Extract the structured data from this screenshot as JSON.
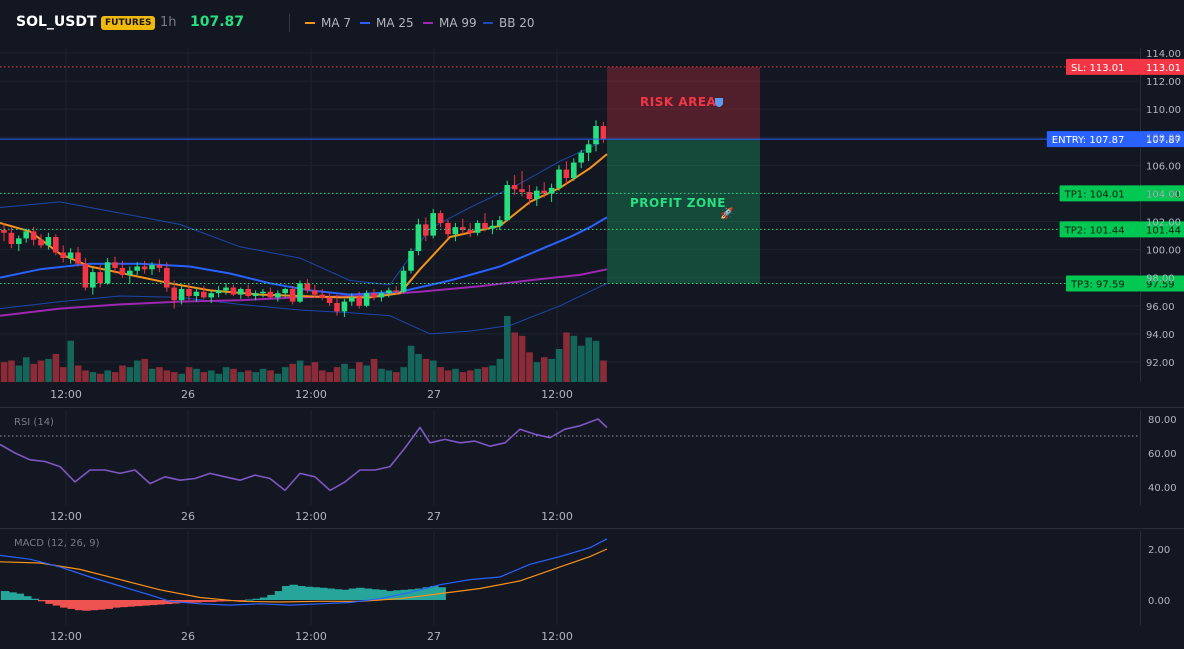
{
  "header": {
    "symbol": "SOL_USDT",
    "badge": "FUTURES",
    "timeframe": "1h",
    "price": "107.87",
    "indicators": [
      {
        "label": "MA 7",
        "color": "#f7931a"
      },
      {
        "label": "MA 25",
        "color": "#2962ff"
      },
      {
        "label": "MA 99",
        "color": "#9c27b0"
      },
      {
        "label": "BB 20",
        "color": "#1e4bb8"
      }
    ]
  },
  "colors": {
    "up": "#26e07f",
    "down": "#f23645",
    "vol_up": "#136659",
    "vol_down": "#8c2b38",
    "ma7": "#f7931a",
    "ma25": "#2962ff",
    "ma99": "#9c27b0",
    "bb": "#1e4bb8",
    "rsi": "#7e57c2",
    "macd": "#2962ff",
    "signal": "#f7931a",
    "hist_up": "#26a69a",
    "hist_down": "#ef5350",
    "sl": "#f23645",
    "entry": "#2962ff",
    "tp": "#26e07f"
  },
  "x_labels": [
    "12:00",
    "26",
    "12:00",
    "27",
    "12:00"
  ],
  "chart_data": [
    {
      "type": "candlestick",
      "name": "price",
      "y_ticks": [
        "114.00",
        "112.00",
        "110.00",
        "108.00",
        "106.00",
        "104.00",
        "102.00",
        "100.00",
        "98.00",
        "96.00",
        "94.00",
        "92.00"
      ],
      "ylim": [
        90.5,
        114.5
      ],
      "candles": [
        [
          101.4,
          101.9,
          100.6,
          101.2
        ],
        [
          101.2,
          101.6,
          100.1,
          100.4
        ],
        [
          100.4,
          101.0,
          99.9,
          100.8
        ],
        [
          100.8,
          101.5,
          100.5,
          101.3
        ],
        [
          101.3,
          101.6,
          100.3,
          100.7
        ],
        [
          100.7,
          101.1,
          100.1,
          100.3
        ],
        [
          100.3,
          101.2,
          100.0,
          100.9
        ],
        [
          100.9,
          101.1,
          99.6,
          99.8
        ],
        [
          99.8,
          100.3,
          99.1,
          99.4
        ],
        [
          99.4,
          100.1,
          99.0,
          99.8
        ],
        [
          99.8,
          100.2,
          98.8,
          99.0
        ],
        [
          99.0,
          99.4,
          97.1,
          97.3
        ],
        [
          97.3,
          98.7,
          96.8,
          98.4
        ],
        [
          98.4,
          98.9,
          97.3,
          97.6
        ],
        [
          97.6,
          99.4,
          97.5,
          99.1
        ],
        [
          99.1,
          99.5,
          98.3,
          98.7
        ],
        [
          98.7,
          99.2,
          98.0,
          98.2
        ],
        [
          98.2,
          98.8,
          97.6,
          98.5
        ],
        [
          98.5,
          99.1,
          98.2,
          98.8
        ],
        [
          98.8,
          99.2,
          98.3,
          98.6
        ],
        [
          98.6,
          99.1,
          98.2,
          98.9
        ],
        [
          98.9,
          99.3,
          98.4,
          98.7
        ],
        [
          98.7,
          99.1,
          97.0,
          97.3
        ],
        [
          97.3,
          97.8,
          95.8,
          96.4
        ],
        [
          96.4,
          97.4,
          96.1,
          97.2
        ],
        [
          97.2,
          97.6,
          96.4,
          96.7
        ],
        [
          96.7,
          97.3,
          96.3,
          97.0
        ],
        [
          97.0,
          97.4,
          96.5,
          96.6
        ],
        [
          96.6,
          97.1,
          96.2,
          96.9
        ],
        [
          96.9,
          97.4,
          96.6,
          97.1
        ],
        [
          97.1,
          97.6,
          96.8,
          97.3
        ],
        [
          97.3,
          97.5,
          96.7,
          96.8
        ],
        [
          96.8,
          97.3,
          96.5,
          97.2
        ],
        [
          97.2,
          97.5,
          96.6,
          96.7
        ],
        [
          96.7,
          97.1,
          96.4,
          96.9
        ],
        [
          96.9,
          97.2,
          96.6,
          97.0
        ],
        [
          97.0,
          97.3,
          96.5,
          96.6
        ],
        [
          96.6,
          97.1,
          96.3,
          96.9
        ],
        [
          96.9,
          97.3,
          96.6,
          97.2
        ],
        [
          97.2,
          97.4,
          96.1,
          96.3
        ],
        [
          96.3,
          97.8,
          96.2,
          97.6
        ],
        [
          97.6,
          97.9,
          96.9,
          97.1
        ],
        [
          97.1,
          97.5,
          96.6,
          96.8
        ],
        [
          96.8,
          97.2,
          96.4,
          96.6
        ],
        [
          96.6,
          96.9,
          96.0,
          96.2
        ],
        [
          96.2,
          96.8,
          95.3,
          95.6
        ],
        [
          95.6,
          96.5,
          95.2,
          96.3
        ],
        [
          96.3,
          96.9,
          96.0,
          96.6
        ],
        [
          96.6,
          97.0,
          95.8,
          96.0
        ],
        [
          96.0,
          97.1,
          95.9,
          96.9
        ],
        [
          96.9,
          97.2,
          96.4,
          96.6
        ],
        [
          96.6,
          97.1,
          96.3,
          96.9
        ],
        [
          96.9,
          97.3,
          96.6,
          97.1
        ],
        [
          97.1,
          97.4,
          96.8,
          97.0
        ],
        [
          97.0,
          98.8,
          96.9,
          98.5
        ],
        [
          98.5,
          100.1,
          98.3,
          99.9
        ],
        [
          99.9,
          102.2,
          99.6,
          101.8
        ],
        [
          101.8,
          102.3,
          100.6,
          101.0
        ],
        [
          101.0,
          102.9,
          100.8,
          102.6
        ],
        [
          102.6,
          102.8,
          101.6,
          101.9
        ],
        [
          101.9,
          102.1,
          100.8,
          101.1
        ],
        [
          101.1,
          101.9,
          100.6,
          101.6
        ],
        [
          101.6,
          102.2,
          101.1,
          101.4
        ],
        [
          101.4,
          101.9,
          100.9,
          101.2
        ],
        [
          101.2,
          102.1,
          101.0,
          101.9
        ],
        [
          101.9,
          102.6,
          101.3,
          101.5
        ],
        [
          101.5,
          102.1,
          101.1,
          101.7
        ],
        [
          101.7,
          102.4,
          101.4,
          102.1
        ],
        [
          102.1,
          104.9,
          102.0,
          104.6
        ],
        [
          104.6,
          105.3,
          103.9,
          104.3
        ],
        [
          104.3,
          105.6,
          103.8,
          104.1
        ],
        [
          104.1,
          104.6,
          103.2,
          103.6
        ],
        [
          103.6,
          104.5,
          103.1,
          104.2
        ],
        [
          104.2,
          104.8,
          103.7,
          104.0
        ],
        [
          104.0,
          104.7,
          103.4,
          104.4
        ],
        [
          104.4,
          106.0,
          104.2,
          105.7
        ],
        [
          105.7,
          106.3,
          104.6,
          105.1
        ],
        [
          105.1,
          106.5,
          104.9,
          106.2
        ],
        [
          106.2,
          107.1,
          105.8,
          106.9
        ],
        [
          106.9,
          107.8,
          106.3,
          107.5
        ],
        [
          107.5,
          109.2,
          107.0,
          108.8
        ],
        [
          108.8,
          109.1,
          107.6,
          107.87
        ]
      ],
      "volume": [
        12,
        13,
        10,
        15,
        11,
        13,
        14,
        17,
        9,
        25,
        10,
        7,
        6,
        5,
        7,
        6,
        10,
        9,
        13,
        14,
        8,
        9,
        7,
        6,
        5,
        9,
        8,
        6,
        7,
        5,
        9,
        8,
        6,
        7,
        6,
        8,
        7,
        5,
        9,
        11,
        13,
        10,
        12,
        7,
        6,
        9,
        11,
        8,
        12,
        10,
        14,
        8,
        7,
        6,
        9,
        22,
        17,
        14,
        13,
        9,
        7,
        8,
        6,
        7,
        8,
        9,
        10,
        14,
        40,
        30,
        28,
        18,
        12,
        15,
        14,
        20,
        30,
        28,
        22,
        27,
        25,
        13
      ],
      "ma7": [
        [
          0,
          101.9
        ],
        [
          30,
          101.3
        ],
        [
          60,
          99.7
        ],
        [
          90,
          98.8
        ],
        [
          130,
          98.2
        ],
        [
          170,
          97.6
        ],
        [
          210,
          97.1
        ],
        [
          260,
          96.8
        ],
        [
          300,
          96.7
        ],
        [
          340,
          96.6
        ],
        [
          370,
          96.6
        ],
        [
          400,
          96.9
        ],
        [
          420,
          98.6
        ],
        [
          450,
          100.9
        ],
        [
          500,
          101.7
        ],
        [
          530,
          103.4
        ],
        [
          560,
          104.4
        ],
        [
          590,
          105.8
        ],
        [
          607,
          106.8
        ]
      ],
      "ma25": [
        [
          0,
          98.0
        ],
        [
          40,
          98.6
        ],
        [
          90,
          99.0
        ],
        [
          140,
          99.0
        ],
        [
          190,
          98.8
        ],
        [
          230,
          98.3
        ],
        [
          270,
          97.6
        ],
        [
          310,
          97.1
        ],
        [
          350,
          96.8
        ],
        [
          400,
          97.0
        ],
        [
          450,
          97.8
        ],
        [
          500,
          98.8
        ],
        [
          540,
          100.0
        ],
        [
          570,
          100.9
        ],
        [
          590,
          101.6
        ],
        [
          607,
          102.3
        ]
      ],
      "ma99": [
        [
          0,
          95.3
        ],
        [
          60,
          95.8
        ],
        [
          120,
          96.1
        ],
        [
          180,
          96.3
        ],
        [
          240,
          96.4
        ],
        [
          300,
          96.6
        ],
        [
          360,
          96.7
        ],
        [
          420,
          97.0
        ],
        [
          480,
          97.4
        ],
        [
          540,
          97.9
        ],
        [
          580,
          98.2
        ],
        [
          607,
          98.6
        ]
      ],
      "bb_upper": [
        [
          0,
          103.0
        ],
        [
          60,
          103.4
        ],
        [
          120,
          102.6
        ],
        [
          180,
          101.8
        ],
        [
          240,
          100.2
        ],
        [
          300,
          99.4
        ],
        [
          350,
          97.8
        ],
        [
          390,
          97.5
        ],
        [
          430,
          101.5
        ],
        [
          470,
          103.0
        ],
        [
          520,
          104.7
        ],
        [
          560,
          106.3
        ],
        [
          600,
          107.6
        ]
      ],
      "bb_lower": [
        [
          0,
          95.8
        ],
        [
          60,
          96.3
        ],
        [
          120,
          96.7
        ],
        [
          180,
          96.6
        ],
        [
          240,
          96.1
        ],
        [
          300,
          95.7
        ],
        [
          350,
          95.5
        ],
        [
          390,
          95.3
        ],
        [
          430,
          94.0
        ],
        [
          470,
          94.2
        ],
        [
          510,
          94.6
        ],
        [
          560,
          96.0
        ],
        [
          607,
          97.6
        ]
      ]
    },
    {
      "type": "line",
      "name": "RSI (14)",
      "label": "RSI (14)",
      "y_ticks": [
        "80.00",
        "60.00",
        "40.00"
      ],
      "ylim": [
        30,
        88
      ],
      "overbought": 70,
      "values": [
        [
          0,
          65
        ],
        [
          15,
          60
        ],
        [
          30,
          56
        ],
        [
          45,
          55
        ],
        [
          60,
          52
        ],
        [
          75,
          43
        ],
        [
          90,
          50
        ],
        [
          105,
          50
        ],
        [
          120,
          48
        ],
        [
          135,
          50
        ],
        [
          150,
          42
        ],
        [
          165,
          46
        ],
        [
          180,
          44
        ],
        [
          195,
          45
        ],
        [
          210,
          48
        ],
        [
          225,
          46
        ],
        [
          240,
          44
        ],
        [
          255,
          47
        ],
        [
          270,
          45
        ],
        [
          285,
          38
        ],
        [
          300,
          48
        ],
        [
          315,
          46
        ],
        [
          330,
          38
        ],
        [
          345,
          43
        ],
        [
          360,
          50
        ],
        [
          375,
          50
        ],
        [
          390,
          52
        ],
        [
          405,
          63
        ],
        [
          420,
          75
        ],
        [
          430,
          66
        ],
        [
          445,
          68
        ],
        [
          460,
          66
        ],
        [
          475,
          67
        ],
        [
          490,
          64
        ],
        [
          505,
          66
        ],
        [
          520,
          74
        ],
        [
          535,
          71
        ],
        [
          550,
          69
        ],
        [
          565,
          74
        ],
        [
          580,
          76
        ],
        [
          598,
          80
        ],
        [
          607,
          75
        ]
      ]
    },
    {
      "type": "line",
      "name": "MACD (12, 26, 9)",
      "label": "MACD (12, 26, 9)",
      "y_ticks": [
        "2.00",
        "0.00"
      ],
      "ylim": [
        -0.9,
        2.75
      ],
      "macd": [
        [
          0,
          1.75
        ],
        [
          30,
          1.6
        ],
        [
          60,
          1.3
        ],
        [
          90,
          0.9
        ],
        [
          120,
          0.55
        ],
        [
          150,
          0.2
        ],
        [
          170,
          -0.05
        ],
        [
          200,
          -0.15
        ],
        [
          230,
          -0.2
        ],
        [
          260,
          -0.15
        ],
        [
          290,
          -0.2
        ],
        [
          320,
          -0.15
        ],
        [
          350,
          -0.1
        ],
        [
          380,
          0.05
        ],
        [
          410,
          0.3
        ],
        [
          440,
          0.6
        ],
        [
          470,
          0.8
        ],
        [
          500,
          0.9
        ],
        [
          530,
          1.4
        ],
        [
          560,
          1.7
        ],
        [
          590,
          2.05
        ],
        [
          607,
          2.4
        ]
      ],
      "signal": [
        [
          0,
          1.5
        ],
        [
          40,
          1.45
        ],
        [
          80,
          1.2
        ],
        [
          120,
          0.8
        ],
        [
          160,
          0.4
        ],
        [
          200,
          0.1
        ],
        [
          240,
          -0.05
        ],
        [
          280,
          -0.08
        ],
        [
          320,
          -0.05
        ],
        [
          360,
          -0.05
        ],
        [
          400,
          0.05
        ],
        [
          440,
          0.25
        ],
        [
          480,
          0.45
        ],
        [
          520,
          0.75
        ],
        [
          560,
          1.3
        ],
        [
          590,
          1.7
        ],
        [
          607,
          2.0
        ]
      ],
      "histogram": [
        0.35,
        0.3,
        0.25,
        0.15,
        0.05,
        -0.05,
        -0.15,
        -0.22,
        -0.3,
        -0.35,
        -0.4,
        -0.42,
        -0.4,
        -0.38,
        -0.35,
        -0.3,
        -0.28,
        -0.26,
        -0.24,
        -0.22,
        -0.2,
        -0.18,
        -0.16,
        -0.14,
        -0.12,
        -0.1,
        -0.1,
        -0.08,
        -0.08,
        -0.06,
        -0.05,
        -0.03,
        -0.01,
        0.02,
        0.05,
        0.1,
        0.2,
        0.35,
        0.55,
        0.6,
        0.55,
        0.52,
        0.5,
        0.48,
        0.45,
        0.42,
        0.4,
        0.45,
        0.48,
        0.45,
        0.42,
        0.4,
        0.35,
        0.38,
        0.4,
        0.42,
        0.45,
        0.5,
        0.55,
        0.5
      ]
    }
  ],
  "zones": {
    "risk_label": "RISK AREA",
    "profit_label": "PROFIT ZONE",
    "risk_top": 113.01,
    "entry": 107.87,
    "profit_bottom": 97.59
  },
  "levels": [
    {
      "name": "sl",
      "value": 113.01,
      "label": "SL: 113.01",
      "price": "113.01",
      "color": "#f23645",
      "style": "dotted"
    },
    {
      "name": "entry",
      "value": 107.87,
      "label": "ENTRY: 107.87",
      "price": "107.87",
      "color": "#2962ff",
      "style": "solid"
    },
    {
      "name": "tp1",
      "value": 104.01,
      "label": "TP1: 104.01",
      "price": "104.01",
      "color": "#26e07f",
      "style": "dotted"
    },
    {
      "name": "tp2",
      "value": 101.44,
      "label": "TP2: 101.44",
      "price": "101.44",
      "color": "#26e07f",
      "style": "dotted"
    },
    {
      "name": "tp3",
      "value": 97.59,
      "label": "TP3: 97.59",
      "price": "97.59",
      "color": "#26e07f",
      "style": "dotted"
    }
  ]
}
